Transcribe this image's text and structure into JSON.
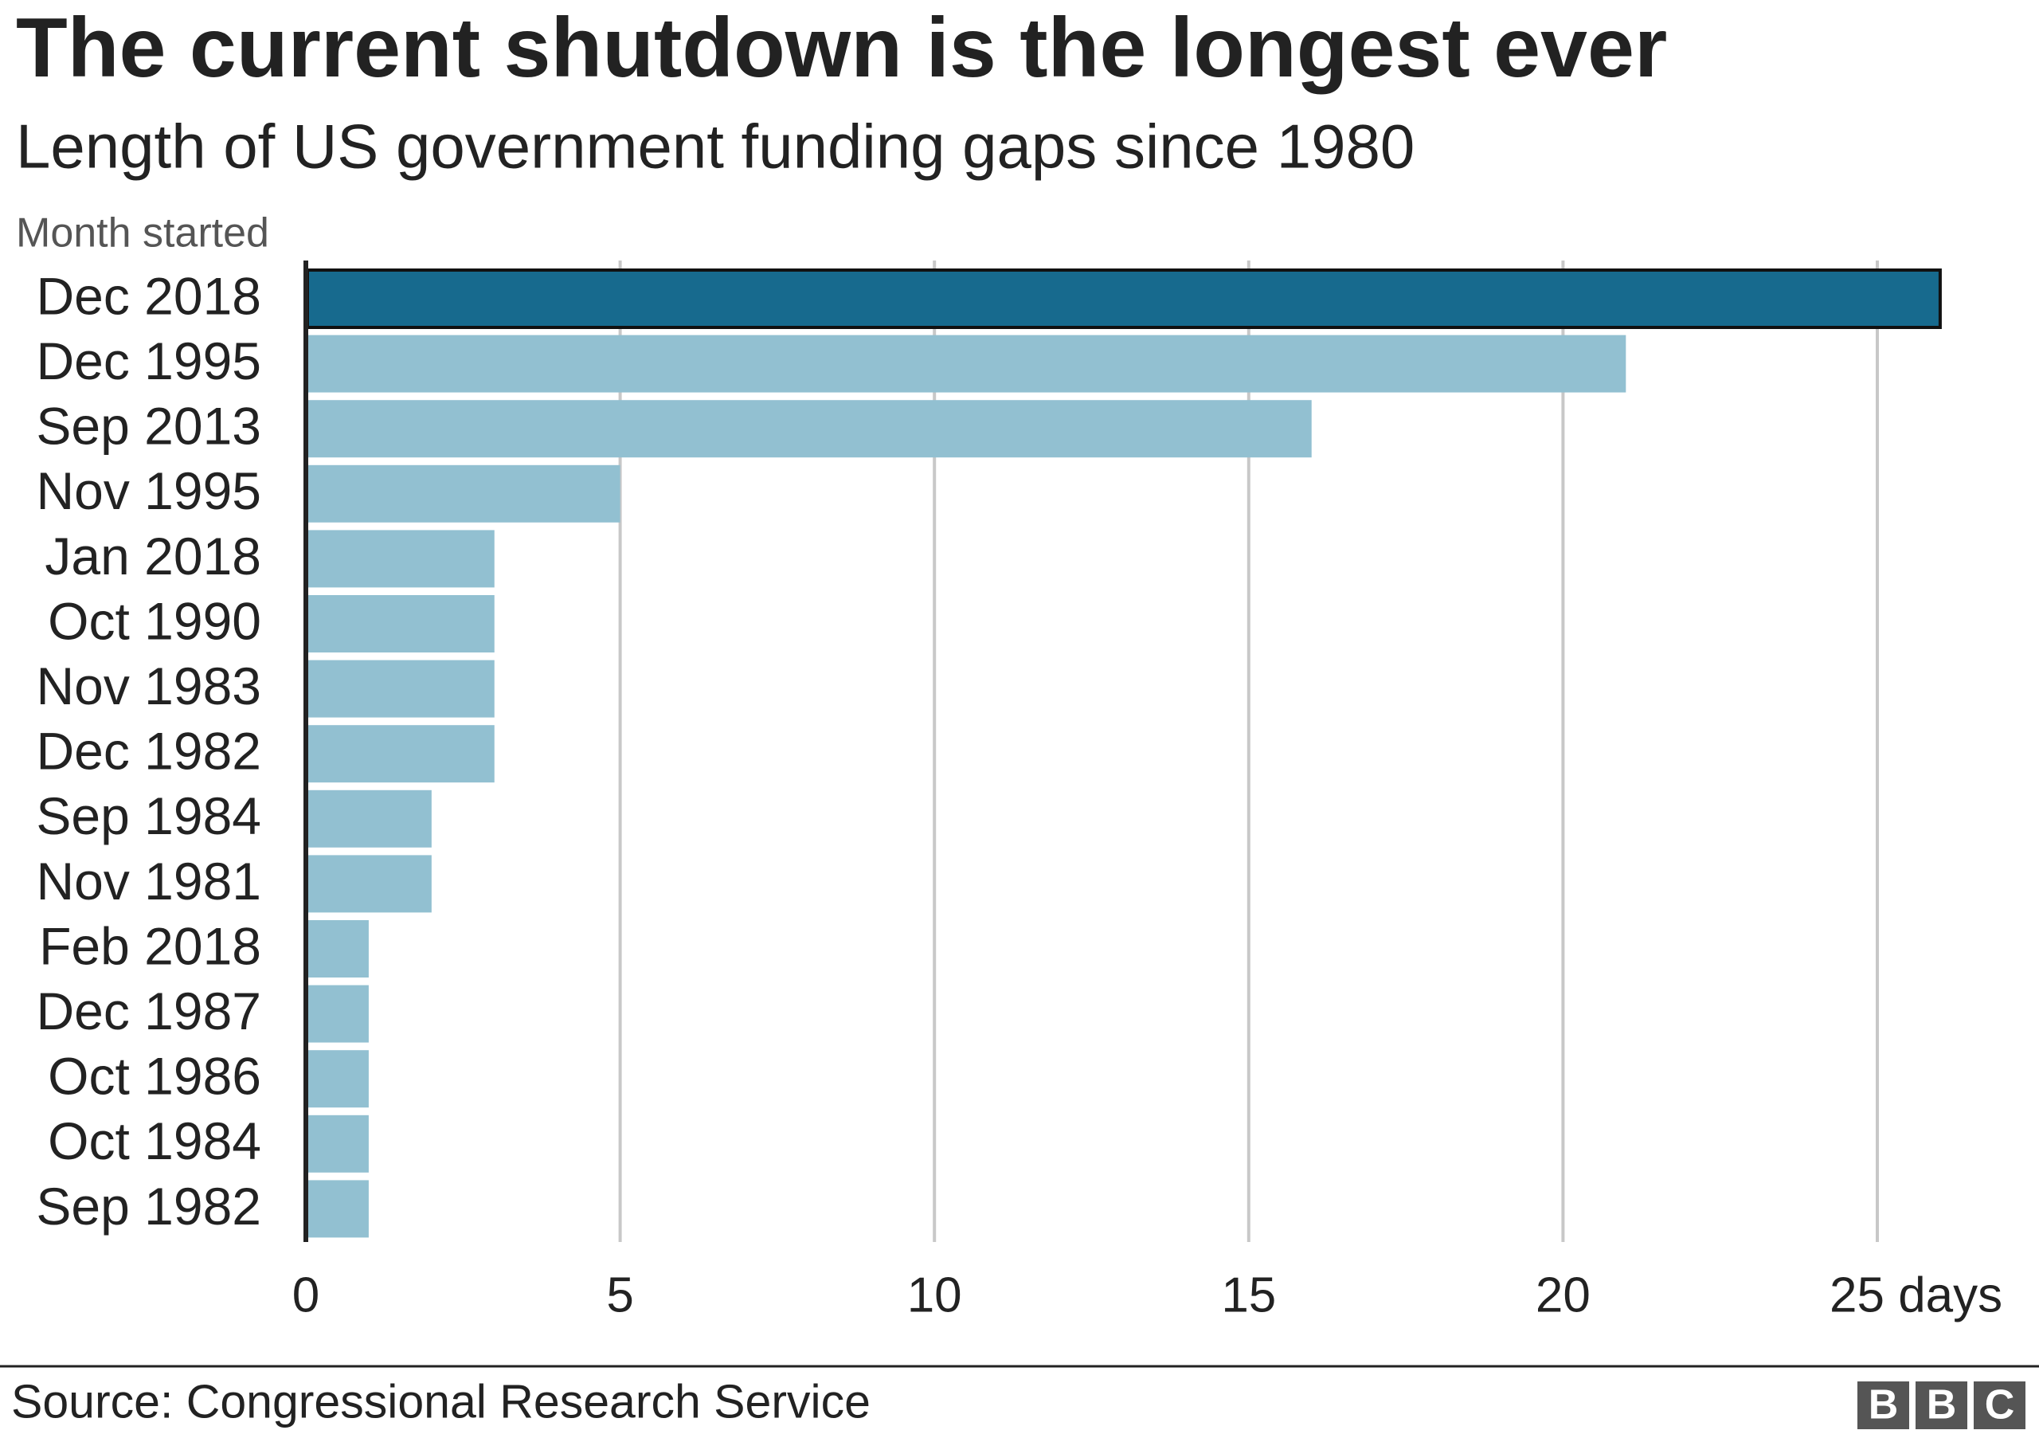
{
  "chart_data": {
    "type": "bar",
    "orientation": "horizontal",
    "title": "The current shutdown is the longest ever",
    "subtitle": "Length of US government funding gaps since 1980",
    "y_axis_label": "Month started",
    "categories": [
      "Dec 2018",
      "Dec 1995",
      "Sep 2013",
      "Nov 1995",
      "Jan 2018",
      "Oct 1990",
      "Nov 1983",
      "Dec 1982",
      "Sep 1984",
      "Nov 1981",
      "Feb 2018",
      "Dec 1987",
      "Oct 1986",
      "Oct 1984",
      "Sep 1982"
    ],
    "values": [
      26,
      21,
      16,
      5,
      3,
      3,
      3,
      3,
      2,
      2,
      1,
      1,
      1,
      1,
      1
    ],
    "colors": [
      "#176a8e",
      "#92c0d1",
      "#92c0d1",
      "#92c0d1",
      "#92c0d1",
      "#92c0d1",
      "#92c0d1",
      "#92c0d1",
      "#92c0d1",
      "#92c0d1",
      "#92c0d1",
      "#92c0d1",
      "#92c0d1",
      "#92c0d1",
      "#92c0d1"
    ],
    "xlim": [
      0,
      27
    ],
    "xticks": [
      0,
      5,
      10,
      15,
      20,
      {
        "value": 25,
        "label": "25 days"
      }
    ],
    "grid": true,
    "source": "Source: Congressional Research Service",
    "logo": [
      "B",
      "B",
      "C"
    ]
  }
}
